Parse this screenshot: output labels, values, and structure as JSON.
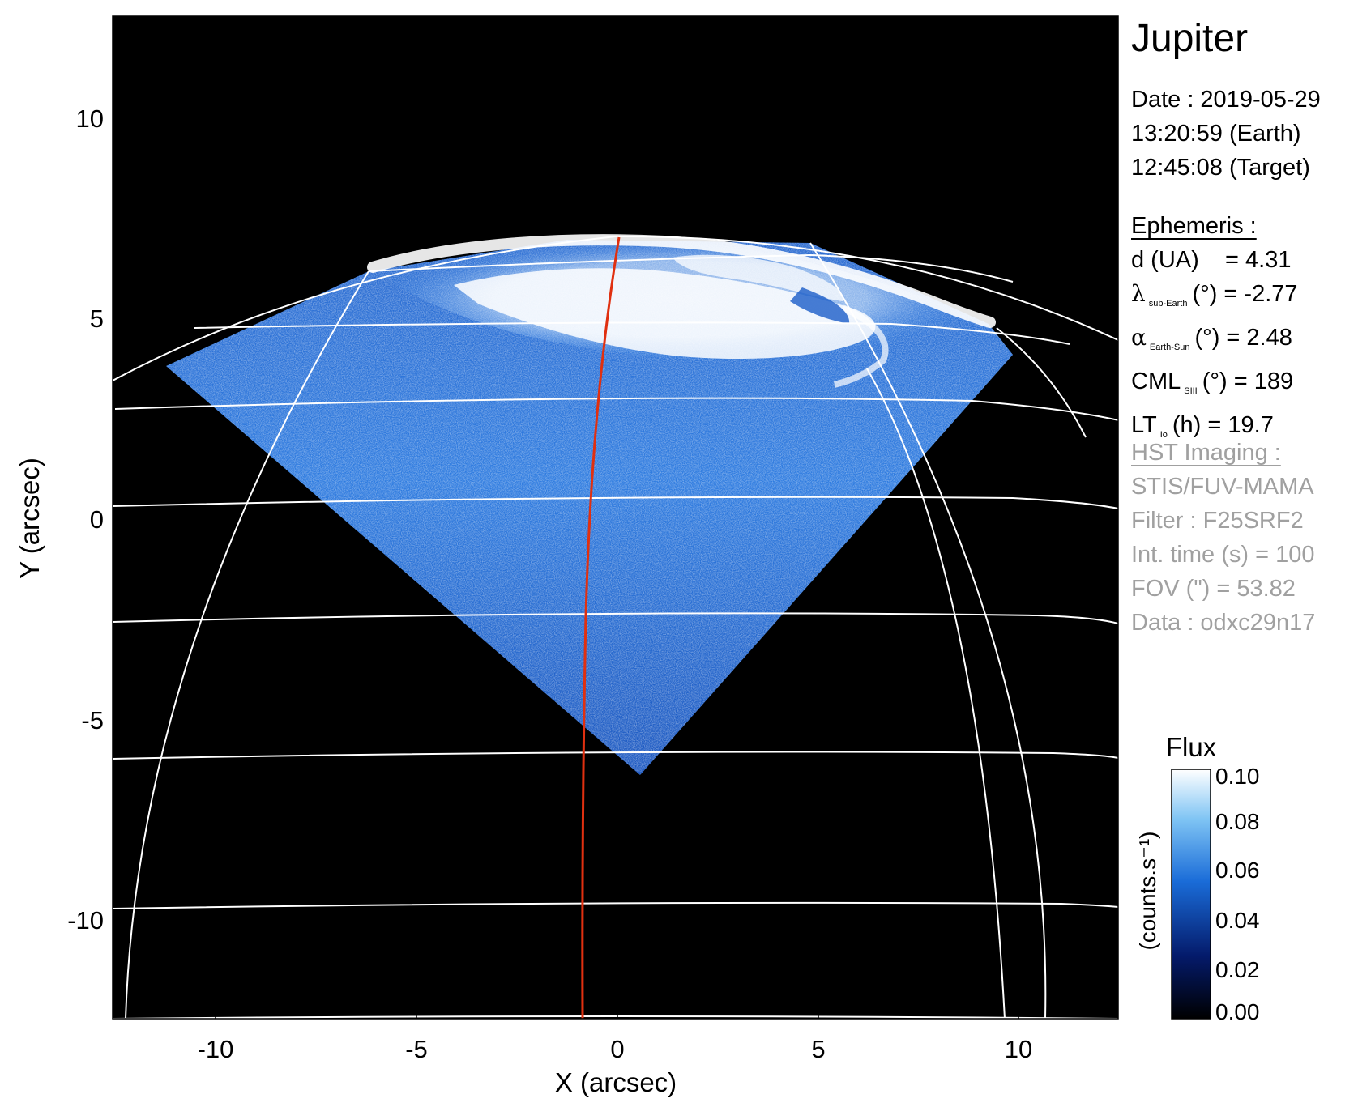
{
  "figure": {
    "title": "Jupiter",
    "xlabel": "X (arcsec)",
    "ylabel": "Y (arcsec)",
    "xlim": [
      -12.5,
      12.5
    ],
    "ylim": [
      -12.5,
      12.5
    ],
    "xticks": [
      "-10",
      "-5",
      "0",
      "5",
      "10"
    ],
    "yticks": [
      "10",
      "5",
      "0",
      "-5",
      "-10"
    ],
    "background_color": "#000000",
    "grid_color": "#ffffff",
    "meridian_color": "#e03010"
  },
  "date_info": {
    "date_line": "Date : 2019-05-29",
    "earth_time": "13:20:59 (Earth)",
    "target_time": "12:45:08 (Target)"
  },
  "ephemeris": {
    "heading": "Ephemeris :",
    "d_label": "d (UA)",
    "d_value": "= 4.31",
    "lambda_symbol": "λ",
    "lambda_sub": "sub-Earth",
    "lambda_rest": "(°) = -2.77",
    "alpha_symbol": "α",
    "alpha_sub": "Earth-Sun",
    "alpha_rest": "(°) = 2.48",
    "cml_label": "CML",
    "cml_sub": "SIII",
    "cml_rest": "(°) = 189",
    "lt_label": "LT",
    "lt_sub": "Io",
    "lt_rest": "(h) = 19.7"
  },
  "hst_imaging": {
    "heading": "HST Imaging :",
    "instrument": "STIS/FUV-MAMA",
    "filter": "Filter : F25SRF2",
    "int_time": "Int. time (s) = 100",
    "fov": "FOV (\") = 53.82",
    "data": "Data : odxc29n17"
  },
  "colorbar": {
    "title": "Flux",
    "units": "(counts.s⁻¹)",
    "ticks": [
      "0.10",
      "0.08",
      "0.06",
      "0.04",
      "0.02",
      "0.00"
    ],
    "color_low": "#000000",
    "color_mid": "#1a6cd8",
    "color_high": "#ffffff"
  }
}
